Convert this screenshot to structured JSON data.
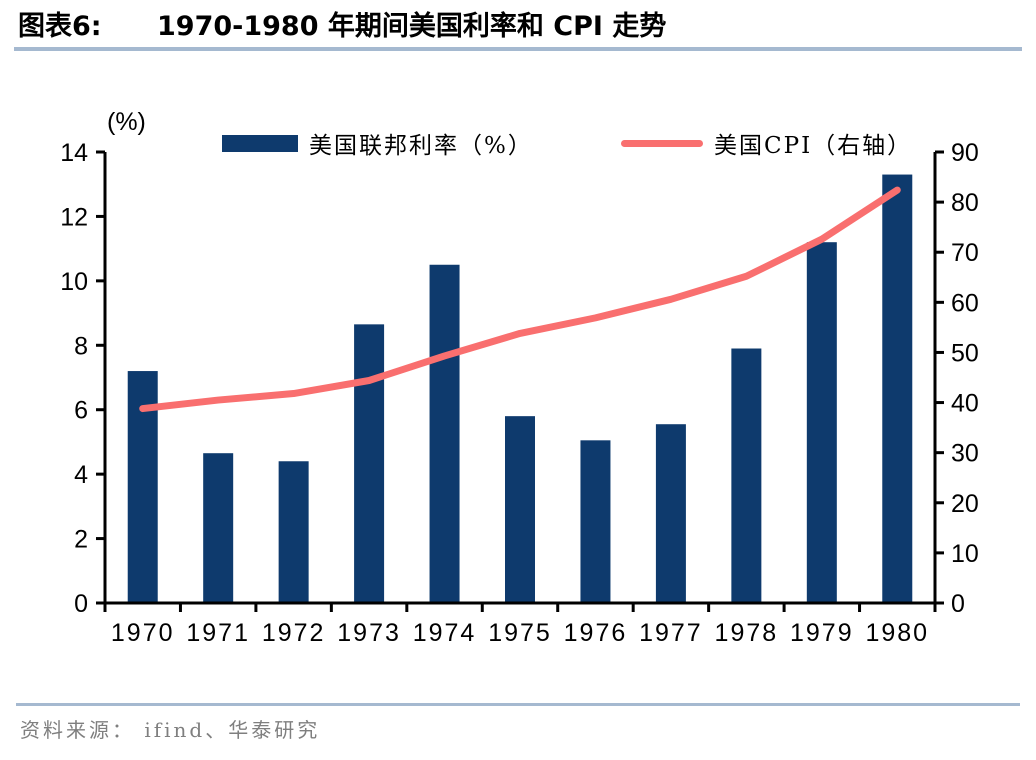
{
  "figure": {
    "label": "图表6:",
    "title": "1970-1980 年期间美国利率和 CPI 走势"
  },
  "axis_unit_label": "(%)",
  "legend": [
    {
      "label": "美国联邦利率（%）",
      "type": "bar",
      "color": "#0e3a6d"
    },
    {
      "label": "美国CPI（右轴）",
      "type": "line",
      "color": "#f96f6f"
    }
  ],
  "source": {
    "prefix": "资料来源：",
    "text": "ifind、华泰研究"
  },
  "chart_data": {
    "type": "bar",
    "title": "1970-1980 年期间美国利率和 CPI 走势",
    "categories": [
      "1970",
      "1971",
      "1972",
      "1973",
      "1974",
      "1975",
      "1976",
      "1977",
      "1978",
      "1979",
      "1980"
    ],
    "series": [
      {
        "name": "美国联邦利率（%）",
        "type": "bar",
        "axis": "left",
        "color": "#0e3a6d",
        "values": [
          7.2,
          4.65,
          4.4,
          8.65,
          10.5,
          5.8,
          5.05,
          5.55,
          7.9,
          11.2,
          13.3
        ]
      },
      {
        "name": "美国CPI（右轴）",
        "type": "line",
        "axis": "right",
        "color": "#f96f6f",
        "values": [
          38.8,
          40.5,
          41.8,
          44.4,
          49.3,
          53.8,
          56.9,
          60.6,
          65.2,
          72.6,
          82.4
        ]
      }
    ],
    "left_axis": {
      "label": "(%)",
      "min": 0,
      "max": 14,
      "ticks": [
        0,
        2,
        4,
        6,
        8,
        10,
        12,
        14
      ]
    },
    "right_axis": {
      "min": 0,
      "max": 90,
      "ticks": [
        0,
        10,
        20,
        30,
        40,
        50,
        60,
        70,
        80,
        90
      ]
    },
    "grid": false,
    "legend_position": "top",
    "axis_color": "#000000"
  }
}
